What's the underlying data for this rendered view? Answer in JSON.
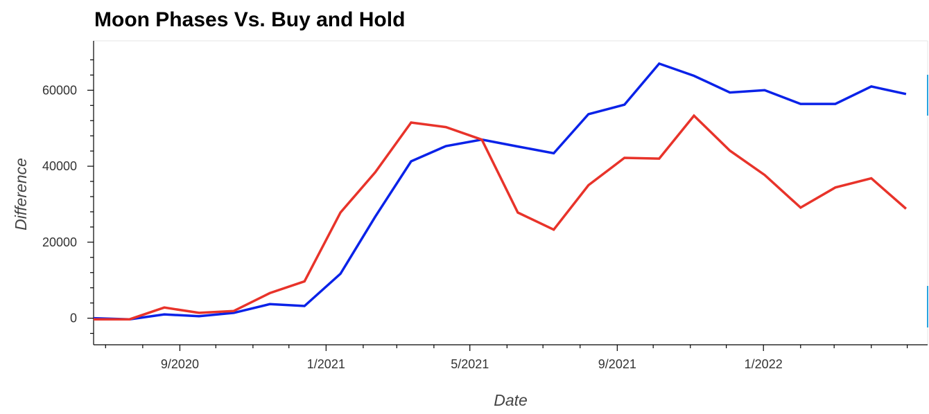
{
  "chart_data": {
    "type": "line",
    "title": "Moon Phases Vs. Buy and Hold",
    "xlabel": "Date",
    "ylabel": "Difference",
    "x": [
      "2020-06-21",
      "2020-07-21",
      "2020-08-19",
      "2020-09-17",
      "2020-10-16",
      "2020-11-15",
      "2020-12-14",
      "2021-01-13",
      "2021-02-11",
      "2021-03-13",
      "2021-04-11",
      "2021-05-11",
      "2021-06-10",
      "2021-07-10",
      "2021-08-08",
      "2021-09-07",
      "2021-10-06",
      "2021-11-04",
      "2021-12-04",
      "2022-01-02",
      "2022-02-01",
      "2022-03-02",
      "2022-04-01",
      "2022-04-30"
    ],
    "x_ticks": [
      "9/2020",
      "1/2021",
      "5/2021",
      "9/2021",
      "1/2022"
    ],
    "series": [
      {
        "color": "#0a22e8",
        "values": [
          0,
          -300,
          1000,
          500,
          1400,
          3700,
          3200,
          11700,
          26700,
          41300,
          45300,
          47000,
          45200,
          43400,
          53700,
          56200,
          67000,
          63800,
          59400,
          60000,
          56400,
          56400,
          61000,
          59000
        ]
      },
      {
        "color": "#e8332a",
        "values": [
          -300,
          -300,
          2800,
          1400,
          1900,
          6600,
          9700,
          27800,
          38400,
          51500,
          50300,
          47000,
          27800,
          23300,
          35000,
          42200,
          42000,
          53300,
          44100,
          37700,
          29100,
          34400,
          36800,
          28800
        ]
      }
    ],
    "yticks": [
      0,
      20000,
      40000,
      60000
    ],
    "ylim": [
      -7000,
      73000
    ],
    "xlim": [
      "2020-06-21",
      "2022-05-18"
    ],
    "grid": false,
    "legend": "none"
  }
}
